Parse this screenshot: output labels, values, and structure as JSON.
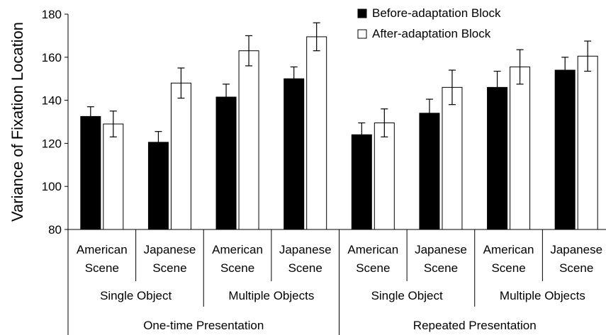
{
  "chart_data": {
    "type": "bar",
    "ylabel": "Variance of Fixation Location",
    "ylim": [
      80,
      180
    ],
    "yticks": [
      80,
      100,
      120,
      140,
      160,
      180
    ],
    "grid": false,
    "legend_position": "top-right",
    "categories": [
      [
        "American",
        "Scene"
      ],
      [
        "Japanese",
        "Scene"
      ],
      [
        "American",
        "Scene"
      ],
      [
        "Japanese",
        "Scene"
      ],
      [
        "American",
        "Scene"
      ],
      [
        "Japanese",
        "Scene"
      ],
      [
        "American",
        "Scene"
      ],
      [
        "Japanese",
        "Scene"
      ]
    ],
    "groups": [
      "Single Object",
      "Multiple Objects",
      "Single Object",
      "Multiple Objects"
    ],
    "supergroups": [
      "One-time Presentation",
      "Repeated Presentation"
    ],
    "series": [
      {
        "name": "Before-adaptation Block",
        "color": "#000000",
        "values": [
          132.5,
          120.5,
          141.5,
          150,
          124,
          134,
          146,
          154
        ],
        "errors": [
          4.5,
          5,
          6,
          5.5,
          5.5,
          6.5,
          7.5,
          6
        ]
      },
      {
        "name": "After-adaptation Block",
        "color": "#ffffff",
        "values": [
          129,
          148,
          163,
          169.5,
          129.5,
          146,
          155.5,
          160.5
        ],
        "errors": [
          6,
          7,
          7,
          6.5,
          6.5,
          8,
          8,
          7
        ]
      }
    ]
  }
}
